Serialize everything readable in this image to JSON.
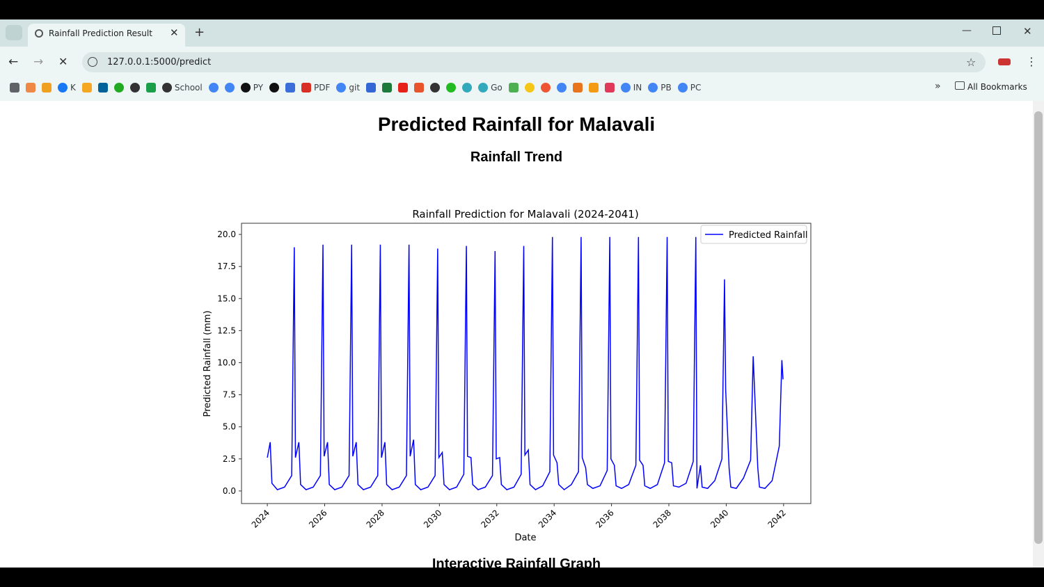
{
  "browser": {
    "tab_title": "Rainfall Prediction Result",
    "url": "127.0.0.1:5000/predict",
    "bookmarks": [
      "K",
      "School",
      "PY",
      "PDF",
      "git",
      "Go",
      "IN",
      "PB",
      "PC"
    ],
    "all_bookmarks": "All Bookmarks"
  },
  "page": {
    "heading": "Predicted Rainfall for Malavali",
    "subheading": "Rainfall Trend",
    "next_heading": "Interactive Rainfall Graph"
  },
  "chart_data": {
    "type": "line",
    "title": "Rainfall Prediction for Malavali (2024-2041)",
    "xlabel": "Date",
    "ylabel": "Predicted Rainfall (mm)",
    "x": [
      2024,
      2024.1,
      2024.16,
      2024.35,
      2024.6,
      2024.85,
      2024.94,
      2024.98,
      2025.1,
      2025.16,
      2025.35,
      2025.6,
      2025.85,
      2025.94,
      2025.98,
      2026.1,
      2026.16,
      2026.35,
      2026.6,
      2026.85,
      2026.94,
      2026.98,
      2027.1,
      2027.16,
      2027.35,
      2027.6,
      2027.85,
      2027.94,
      2027.98,
      2028.1,
      2028.16,
      2028.35,
      2028.6,
      2028.85,
      2028.94,
      2028.98,
      2029.1,
      2029.16,
      2029.35,
      2029.6,
      2029.85,
      2029.94,
      2029.98,
      2030.1,
      2030.16,
      2030.35,
      2030.6,
      2030.85,
      2030.94,
      2030.98,
      2031.1,
      2031.16,
      2031.35,
      2031.6,
      2031.85,
      2031.94,
      2031.98,
      2032.1,
      2032.16,
      2032.35,
      2032.6,
      2032.85,
      2032.94,
      2032.98,
      2033.1,
      2033.16,
      2033.35,
      2033.6,
      2033.85,
      2033.94,
      2033.98,
      2034.1,
      2034.16,
      2034.35,
      2034.6,
      2034.85,
      2034.94,
      2034.98,
      2035.1,
      2035.16,
      2035.35,
      2035.6,
      2035.85,
      2035.94,
      2035.98,
      2036.1,
      2036.16,
      2036.35,
      2036.6,
      2036.85,
      2036.94,
      2036.98,
      2037.1,
      2037.16,
      2037.35,
      2037.6,
      2037.85,
      2037.94,
      2037.98,
      2038.1,
      2038.16,
      2038.35,
      2038.6,
      2038.85,
      2038.94,
      2038.98,
      2039.1,
      2039.16,
      2039.35,
      2039.6,
      2039.85,
      2039.94,
      2039.98,
      2040.1,
      2040.16,
      2040.35,
      2040.6,
      2040.85,
      2040.94,
      2040.98,
      2041.1,
      2041.16,
      2041.35,
      2041.6,
      2041.85,
      2041.94,
      2041.98
    ],
    "series": [
      {
        "name": "Predicted Rainfall",
        "color": "#0000ff",
        "values": [
          2.6,
          3.8,
          0.6,
          0.1,
          0.3,
          1.2,
          19.0,
          2.6,
          3.8,
          0.5,
          0.1,
          0.3,
          1.2,
          19.2,
          2.7,
          3.8,
          0.5,
          0.1,
          0.3,
          1.2,
          19.2,
          2.7,
          3.8,
          0.5,
          0.1,
          0.3,
          1.2,
          19.2,
          2.6,
          3.8,
          0.5,
          0.1,
          0.3,
          1.2,
          19.2,
          2.7,
          4.0,
          0.5,
          0.1,
          0.3,
          1.2,
          18.9,
          2.6,
          3.0,
          0.5,
          0.1,
          0.3,
          1.3,
          19.1,
          2.7,
          2.6,
          0.5,
          0.1,
          0.3,
          1.2,
          18.7,
          2.5,
          2.6,
          0.5,
          0.1,
          0.3,
          1.3,
          19.1,
          2.8,
          3.2,
          0.5,
          0.1,
          0.4,
          1.5,
          19.8,
          2.8,
          2.2,
          0.5,
          0.1,
          0.5,
          1.5,
          19.8,
          2.6,
          1.8,
          0.5,
          0.2,
          0.4,
          1.6,
          19.8,
          2.5,
          2.0,
          0.4,
          0.2,
          0.5,
          2.0,
          19.8,
          2.4,
          2.0,
          0.4,
          0.2,
          0.5,
          2.2,
          19.8,
          2.3,
          2.2,
          0.4,
          0.3,
          0.6,
          2.3,
          19.8,
          0.2,
          2.0,
          0.3,
          0.2,
          0.8,
          2.5,
          16.5,
          7.9,
          1.8,
          0.3,
          0.2,
          1.0,
          2.4,
          10.5,
          8.3,
          1.8,
          0.3,
          0.2,
          0.8,
          3.5,
          10.2,
          8.7
        ]
      }
    ],
    "xlim": [
      2023.1,
      2042.95
    ],
    "ylim": [
      -0.98,
      20.87
    ],
    "xticks": [
      2024,
      2026,
      2028,
      2030,
      2032,
      2034,
      2036,
      2038,
      2040,
      2042
    ],
    "yticks": [
      {
        "value": 0,
        "label": "0.0"
      },
      {
        "value": 2.5,
        "label": "2.5"
      },
      {
        "value": 5,
        "label": "5.0"
      },
      {
        "value": 7.5,
        "label": "7.5"
      },
      {
        "value": 10,
        "label": "10.0"
      },
      {
        "value": 12.5,
        "label": "12.5"
      },
      {
        "value": 15,
        "label": "15.0"
      },
      {
        "value": 17.5,
        "label": "17.5"
      },
      {
        "value": 20,
        "label": "20.0"
      }
    ],
    "legend": "upper right",
    "grid": false
  }
}
